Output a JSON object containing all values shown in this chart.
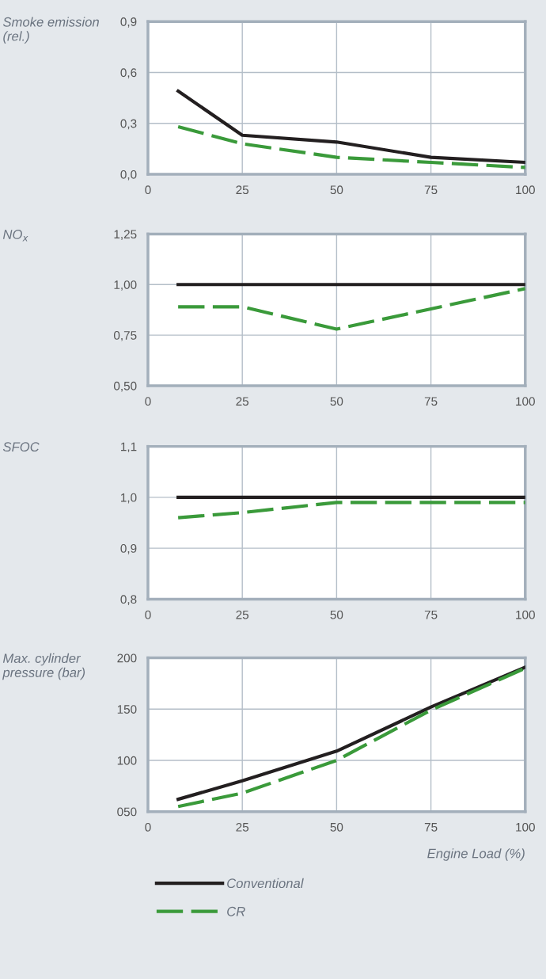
{
  "chart_data": [
    {
      "type": "line",
      "ylabel": "Smoke emission\n(rel.)",
      "x": [
        8,
        25,
        50,
        75,
        100
      ],
      "xlim": [
        0,
        100
      ],
      "xticks": [
        0,
        25,
        50,
        75,
        100
      ],
      "ylim": [
        0,
        0.9
      ],
      "yticks": [
        {
          "value": 0,
          "label": "0,0"
        },
        {
          "value": 0.3,
          "label": "0,3"
        },
        {
          "value": 0.6,
          "label": "0,6"
        },
        {
          "value": 0.9,
          "label": "0,9"
        }
      ],
      "grid": true,
      "series": [
        {
          "color": "#231f20",
          "line_style": "solid",
          "values": [
            0.49,
            0.23,
            0.19,
            0.1,
            0.07
          ]
        },
        {
          "color": "#3a9a3a",
          "line_style": "dashed",
          "values": [
            0.28,
            0.18,
            0.1,
            0.07,
            0.04
          ]
        }
      ]
    },
    {
      "type": "line",
      "ylabel": "NO$_{x}$",
      "x": [
        8,
        25,
        50,
        75,
        100
      ],
      "xlim": [
        0,
        100
      ],
      "xticks": [
        0,
        25,
        50,
        75,
        100
      ],
      "ylim": [
        0.5,
        1.25
      ],
      "yticks": [
        {
          "value": 0.5,
          "label": "0,50"
        },
        {
          "value": 0.75,
          "label": "0,75"
        },
        {
          "value": 1.0,
          "label": "1,00"
        },
        {
          "value": 1.25,
          "label": "1,25"
        }
      ],
      "grid": true,
      "series": [
        {
          "color": "#231f20",
          "line_style": "solid",
          "values": [
            1.0,
            1.0,
            1.0,
            1.0,
            1.0
          ]
        },
        {
          "color": "#3a9a3a",
          "line_style": "dashed",
          "values": [
            0.89,
            0.89,
            0.78,
            0.88,
            0.98
          ]
        }
      ]
    },
    {
      "type": "line",
      "ylabel": "SFOC",
      "x": [
        8,
        25,
        50,
        75,
        100
      ],
      "xlim": [
        0,
        100
      ],
      "xticks": [
        0,
        25,
        50,
        75,
        100
      ],
      "ylim": [
        0.8,
        1.1
      ],
      "yticks": [
        {
          "value": 0.8,
          "label": "0,8"
        },
        {
          "value": 0.9,
          "label": "0,9"
        },
        {
          "value": 1.0,
          "label": "1,0"
        },
        {
          "value": 1.1,
          "label": "1,1"
        }
      ],
      "grid": true,
      "series": [
        {
          "color": "#231f20",
          "line_style": "solid",
          "values": [
            1.0,
            1.0,
            1.0,
            1.0,
            1.0
          ]
        },
        {
          "color": "#3a9a3a",
          "line_style": "dashed",
          "values": [
            0.96,
            0.97,
            0.99,
            0.99,
            0.99
          ]
        }
      ]
    },
    {
      "type": "line",
      "ylabel": "Max. cylinder\npressure (bar)",
      "xlabel": "Engine Load (%)",
      "x": [
        8,
        25,
        50,
        75,
        100
      ],
      "xlim": [
        0,
        100
      ],
      "xticks": [
        0,
        25,
        50,
        75,
        100
      ],
      "ylim": [
        50,
        200
      ],
      "yticks": [
        {
          "value": 50,
          "label": "050"
        },
        100,
        150,
        200
      ],
      "grid": true,
      "legend": "bottom",
      "series": [
        {
          "name": "Conventional",
          "color": "#231f20",
          "line_style": "solid",
          "values": [
            62,
            80,
            109,
            152,
            191
          ]
        },
        {
          "name": "CR",
          "color": "#3a9a3a",
          "line_style": "dashed",
          "values": [
            55,
            68,
            100,
            149,
            190
          ]
        }
      ]
    }
  ]
}
